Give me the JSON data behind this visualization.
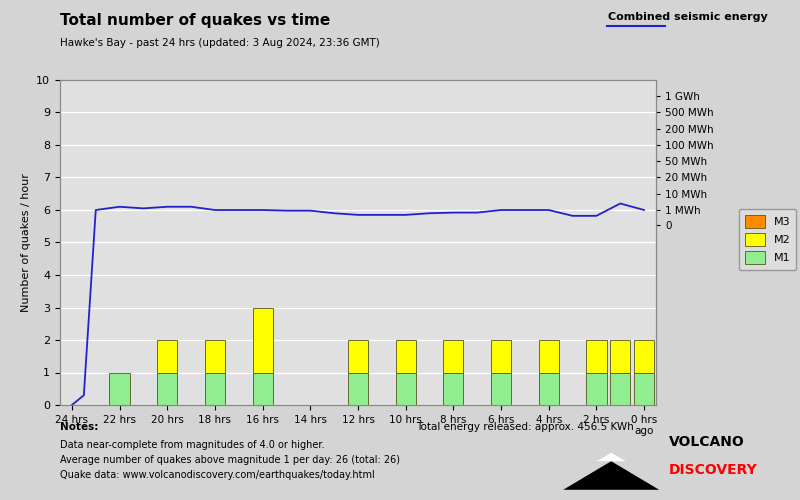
{
  "title": "Total number of quakes vs time",
  "subtitle": "Hawke's Bay - past 24 hrs (updated: 3 Aug 2024, 23:36 GMT)",
  "ylabel": "Number of quakes / hour",
  "bg_color": "#d4d4d4",
  "plot_bg_color": "#e0e0e0",
  "bar_centers": [
    23,
    22,
    21,
    20,
    19,
    18,
    17,
    16,
    15,
    14,
    13,
    12,
    11,
    10,
    9,
    8,
    7,
    6,
    5,
    4,
    3,
    2,
    1,
    0
  ],
  "M1": [
    0,
    1,
    0,
    1,
    0,
    1,
    0,
    1,
    0,
    0,
    0,
    1,
    0,
    1,
    0,
    1,
    0,
    1,
    0,
    1,
    0,
    1,
    1,
    1
  ],
  "M2": [
    0,
    0,
    0,
    1,
    0,
    1,
    0,
    2,
    0,
    0,
    0,
    1,
    0,
    1,
    0,
    1,
    0,
    1,
    0,
    1,
    0,
    1,
    1,
    1
  ],
  "M3": [
    0,
    0,
    0,
    0,
    0,
    0,
    0,
    0,
    0,
    0,
    0,
    0,
    0,
    0,
    0,
    0,
    0,
    0,
    0,
    0,
    0,
    0,
    0,
    0
  ],
  "line_x": [
    24,
    23.5,
    23,
    22,
    21,
    20,
    19,
    18,
    17,
    16,
    15,
    14,
    13,
    12,
    11,
    10,
    9,
    8,
    7,
    6,
    5,
    4,
    3,
    2,
    1,
    0
  ],
  "line_y": [
    0,
    0.3,
    6,
    6.1,
    6.05,
    6.1,
    6.1,
    6.0,
    6.0,
    6.0,
    5.98,
    5.98,
    5.9,
    5.85,
    5.85,
    5.85,
    5.9,
    5.92,
    5.92,
    6.0,
    6.0,
    6.0,
    5.82,
    5.82,
    6.2,
    6.0
  ],
  "ylim": [
    0,
    10
  ],
  "xlim_left": 24.5,
  "xlim_right": -0.5,
  "tick_positions": [
    24,
    22,
    20,
    18,
    16,
    14,
    12,
    10,
    8,
    6,
    4,
    2,
    0
  ],
  "tick_labels": [
    "24 hrs",
    "22 hrs",
    "20 hrs",
    "18 hrs",
    "16 hrs",
    "14 hrs",
    "12 hrs",
    "10 hrs",
    "8 hrs",
    "6 hrs",
    "4 hrs",
    "2 hrs",
    "0 hrs\nago"
  ],
  "color_M1": "#90ee90",
  "color_M2": "#ffff00",
  "color_M3": "#ff8c00",
  "line_color": "#2222cc",
  "right_axis_labels": [
    "1 GWh",
    "500 MWh",
    "200 MWh",
    "100 MWh",
    "50 MWh",
    "20 MWh",
    "10 MWh",
    "1 MWh",
    "0"
  ],
  "right_axis_positions": [
    9.5,
    9.0,
    8.5,
    8.0,
    7.5,
    7.0,
    6.5,
    6.0,
    5.55
  ],
  "combined_label": "Combined seismic energy",
  "notes_label": "Notes:",
  "notes_line1": "Data near-complete from magnitudes of 4.0 or higher.",
  "notes_line2": "Average number of quakes above magnitude 1 per day: 26 (total: 26)",
  "notes_line3": "Quake data: www.volcanodiscovery.com/earthquakes/today.html",
  "energy_text": "Total energy released: approx. 456.5 KWh"
}
